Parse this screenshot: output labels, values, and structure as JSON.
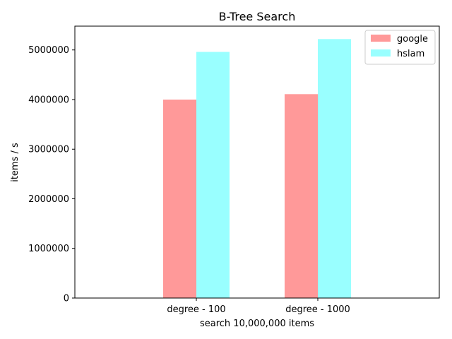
{
  "chart_data": {
    "type": "bar",
    "title": "B-Tree Search",
    "xlabel": "search 10,000,000 items",
    "ylabel": "items / s",
    "categories": [
      "degree - 100",
      "degree - 1000"
    ],
    "series": [
      {
        "name": "google",
        "values": [
          4000000,
          4110000
        ],
        "color": "#ff9999"
      },
      {
        "name": "hslam",
        "values": [
          4960000,
          5220000
        ],
        "color": "#99ffff"
      }
    ],
    "ylim": [
      0,
      5480000
    ],
    "yticks": [
      0,
      1000000,
      2000000,
      3000000,
      4000000,
      5000000
    ],
    "ytick_labels": [
      "0",
      "1000000",
      "2000000",
      "3000000",
      "4000000",
      "5000000"
    ],
    "legend_position": "top-right",
    "grid": false
  }
}
